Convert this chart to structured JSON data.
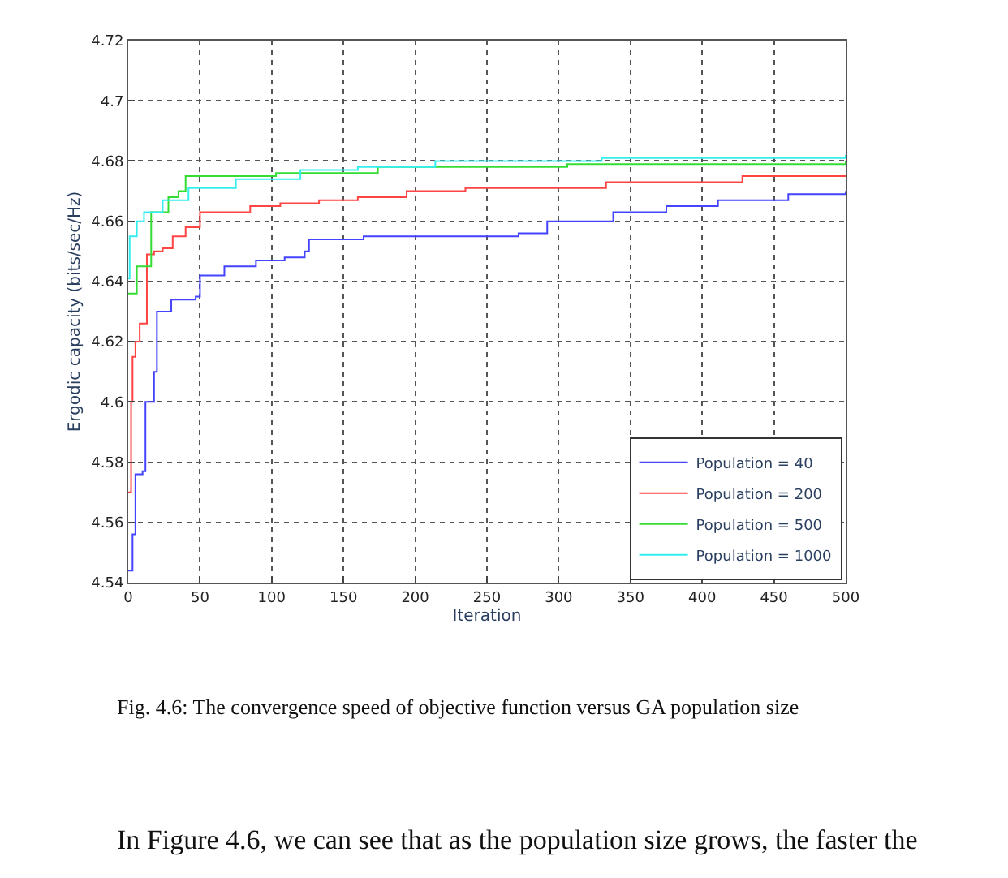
{
  "chart_data": {
    "type": "step",
    "xlabel": "Iteration",
    "ylabel": "Ergodic capacity (bits/sec/Hz)",
    "annotations": [
      "Fig. 4.6: The convergence speed of objective function versus GA population size",
      "In Figure 4.6, we can see that as the population size grows, the faster the"
    ],
    "series": [
      {
        "name": "Population = 40",
        "color": "#4444ff",
        "x": [
          0,
          3,
          5,
          10,
          12,
          18,
          20,
          30,
          47,
          50,
          67,
          89,
          109,
          123,
          126,
          164,
          272,
          292,
          338,
          375,
          411,
          460,
          500
        ],
        "values": [
          4.544,
          4.556,
          4.576,
          4.577,
          4.6,
          4.61,
          4.63,
          4.634,
          4.635,
          4.642,
          4.645,
          4.647,
          4.648,
          4.65,
          4.654,
          4.655,
          4.656,
          4.66,
          4.663,
          4.665,
          4.667,
          4.669,
          4.67
        ]
      },
      {
        "name": "Population = 200",
        "color": "#ff4444",
        "x": [
          0,
          2,
          3,
          5,
          8,
          13,
          18,
          24,
          31,
          40,
          50,
          85,
          106,
          133,
          160,
          194,
          235,
          333,
          428,
          500
        ],
        "values": [
          4.57,
          4.6,
          4.615,
          4.62,
          4.626,
          4.649,
          4.65,
          4.651,
          4.655,
          4.658,
          4.663,
          4.665,
          4.666,
          4.667,
          4.668,
          4.67,
          4.671,
          4.673,
          4.675,
          4.675
        ]
      },
      {
        "name": "Population = 500",
        "color": "#33dd33",
        "x": [
          0,
          6,
          16,
          28,
          35,
          40,
          103,
          174,
          306,
          500
        ],
        "values": [
          4.636,
          4.645,
          4.663,
          4.668,
          4.67,
          4.675,
          4.676,
          4.678,
          4.679,
          4.68
        ]
      },
      {
        "name": "Population = 1000",
        "color": "#33eeee",
        "x": [
          0,
          1,
          6,
          11,
          24,
          42,
          75,
          120,
          160,
          214,
          330,
          500
        ],
        "values": [
          4.641,
          4.655,
          4.66,
          4.663,
          4.667,
          4.671,
          4.674,
          4.677,
          4.678,
          4.68,
          4.681,
          4.682
        ]
      }
    ],
    "xlim": [
      0,
      500
    ],
    "xticks": [
      0,
      50,
      100,
      150,
      200,
      250,
      300,
      350,
      400,
      450,
      500
    ],
    "ylim": [
      4.54,
      4.72
    ],
    "yticks": [
      4.54,
      4.56,
      4.58,
      4.6,
      4.62,
      4.64,
      4.66,
      4.68,
      4.7,
      4.72
    ],
    "grid": true,
    "legend": "bottom right",
    "line_style": "solid",
    "marker": "none"
  }
}
